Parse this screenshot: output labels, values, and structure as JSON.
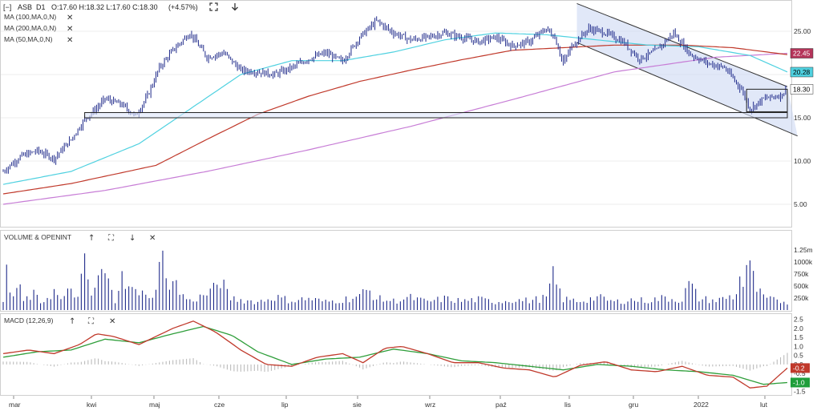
{
  "header": {
    "collapse_glyph": "[−]",
    "symbol": "ASB",
    "interval": "D1",
    "ohlc": "O:17.60  H:18.32  L:17.60  C:18.30",
    "change": "(+4.57%)",
    "expand_icon": "expand-icon",
    "down_icon": "arrow-down-icon"
  },
  "indicators": [
    {
      "label": "MA (100,MA,0,N)",
      "color": "#c0392b",
      "close_glyph": "✕"
    },
    {
      "label": "MA (200,MA,0,N)",
      "color": "#c77dd6",
      "close_glyph": "✕"
    },
    {
      "label": "MA (50,MA,0,N)",
      "color": "#4fd1e0",
      "close_glyph": "✕"
    }
  ],
  "volume_panel": {
    "label": "VOLUME & OPENINT",
    "glyphs": [
      "↑",
      "⛶",
      "↓",
      "✕"
    ]
  },
  "macd_panel": {
    "label": "MACD (12,26,9)",
    "glyphs": [
      "↑",
      "⛶",
      "✕"
    ]
  },
  "price_badges": [
    {
      "text": "22.45",
      "value": 22.45,
      "bg": "#b5345a",
      "fg": "#ffffff"
    },
    {
      "text": "20.28",
      "value": 20.28,
      "bg": "#4fd1e0",
      "fg": "#000000"
    },
    {
      "text": "18.30",
      "value": 18.3,
      "bg": "#ffffff",
      "fg": "#000000"
    }
  ],
  "macd_badges": [
    {
      "text": "-0.2",
      "value": -0.2,
      "bg": "#c0392b",
      "fg": "#ffffff"
    },
    {
      "text": "-1.0",
      "value": -1.0,
      "bg": "#1e9e3a",
      "fg": "#ffffff"
    }
  ],
  "colors": {
    "candle": "#1f2a8a",
    "ma50": "#4fd1e0",
    "ma100": "#c0392b",
    "ma200": "#c77dd6",
    "channel_fill": "#c9d6f2",
    "macd_line": "#c0392b",
    "signal_line": "#2e9e3a",
    "hist": "#bbbbbb",
    "volume": "#1f2a8a"
  },
  "chart_data": [
    {
      "type": "candlestick",
      "title": "ASB D1",
      "x_ticks": [
        "mar",
        "kwi",
        "maj",
        "cze",
        "lip",
        "sie",
        "wrz",
        "paź",
        "lis",
        "gru",
        "2022",
        "lut"
      ],
      "ylim": [
        2.5,
        27.5
      ],
      "y_ticks": [
        5,
        10,
        15,
        20,
        25
      ],
      "y_tick_labels": [
        "5.00",
        "10.00",
        "15.00",
        "20.00",
        "25.00"
      ],
      "last": {
        "open": 17.6,
        "high": 18.32,
        "low": 17.6,
        "close": 18.3,
        "change_pct": 4.57
      },
      "close_keypoints": [
        [
          0,
          8.8
        ],
        [
          10,
          10.5
        ],
        [
          20,
          11.2
        ],
        [
          30,
          10.3
        ],
        [
          40,
          12.5
        ],
        [
          48,
          14.8
        ],
        [
          55,
          16.1
        ],
        [
          60,
          17.2
        ],
        [
          70,
          16.5
        ],
        [
          78,
          15.2
        ],
        [
          85,
          17.5
        ],
        [
          92,
          20.8
        ],
        [
          100,
          22.8
        ],
        [
          110,
          24.8
        ],
        [
          120,
          22.0
        ],
        [
          130,
          22.5
        ],
        [
          140,
          20.5
        ],
        [
          150,
          20.3
        ],
        [
          160,
          20.0
        ],
        [
          170,
          20.8
        ],
        [
          180,
          21.8
        ],
        [
          190,
          22.5
        ],
        [
          200,
          21.5
        ],
        [
          210,
          24.3
        ],
        [
          220,
          26.2
        ],
        [
          230,
          24.8
        ],
        [
          240,
          24.0
        ],
        [
          250,
          24.3
        ],
        [
          260,
          24.8
        ],
        [
          270,
          24.3
        ],
        [
          280,
          23.8
        ],
        [
          290,
          24.3
        ],
        [
          300,
          23.3
        ],
        [
          310,
          23.8
        ],
        [
          320,
          25.3
        ],
        [
          325,
          24.3
        ],
        [
          330,
          21.3
        ],
        [
          335,
          23.3
        ],
        [
          345,
          25.3
        ],
        [
          355,
          24.8
        ],
        [
          365,
          23.8
        ],
        [
          375,
          21.8
        ],
        [
          385,
          22.8
        ],
        [
          395,
          24.8
        ],
        [
          405,
          22.3
        ],
        [
          415,
          21.3
        ],
        [
          425,
          20.8
        ],
        [
          435,
          18.3
        ],
        [
          440,
          16.0
        ],
        [
          448,
          17.2
        ],
        [
          458,
          17.6
        ],
        [
          462,
          18.3
        ]
      ],
      "horizontal_levels": [
        15.0,
        15.6
      ],
      "box": {
        "x": [
          438,
          462
        ],
        "y": [
          15.7,
          18.3
        ]
      },
      "channel": {
        "upper": [
          [
            338,
            28.2
          ],
          [
            462,
            18.6
          ]
        ],
        "lower": [
          [
            338,
            23.7
          ],
          [
            468,
            12.9
          ]
        ]
      },
      "ma50": [
        [
          0,
          7.3
        ],
        [
          40,
          8.8
        ],
        [
          80,
          12.0
        ],
        [
          110,
          16.0
        ],
        [
          140,
          20.0
        ],
        [
          170,
          21.6
        ],
        [
          200,
          21.6
        ],
        [
          230,
          22.6
        ],
        [
          260,
          24.0
        ],
        [
          290,
          24.8
        ],
        [
          320,
          24.6
        ],
        [
          350,
          24.0
        ],
        [
          380,
          23.4
        ],
        [
          410,
          23.2
        ],
        [
          440,
          22.2
        ],
        [
          462,
          20.3
        ]
      ],
      "ma100": [
        [
          0,
          6.2
        ],
        [
          40,
          7.4
        ],
        [
          90,
          9.5
        ],
        [
          120,
          12.5
        ],
        [
          150,
          15.4
        ],
        [
          180,
          17.5
        ],
        [
          210,
          19.2
        ],
        [
          240,
          20.5
        ],
        [
          270,
          21.7
        ],
        [
          300,
          22.8
        ],
        [
          320,
          23.0
        ],
        [
          360,
          23.4
        ],
        [
          400,
          23.4
        ],
        [
          430,
          23.1
        ],
        [
          462,
          22.3
        ]
      ],
      "ma200": [
        [
          0,
          5.0
        ],
        [
          60,
          6.6
        ],
        [
          120,
          8.8
        ],
        [
          180,
          11.3
        ],
        [
          240,
          14.0
        ],
        [
          300,
          17.1
        ],
        [
          360,
          20.3
        ],
        [
          420,
          22.0
        ],
        [
          462,
          22.45
        ]
      ]
    },
    {
      "type": "bar",
      "title": "VOLUME & OPENINT",
      "ylim": [
        0,
        1450
      ],
      "y_ticks": [
        250,
        500,
        750,
        1000,
        1250
      ],
      "y_tick_labels": [
        "250k",
        "500k",
        "750k",
        "1000k",
        "1.25m"
      ],
      "volume_keypoints": [
        [
          0,
          200
        ],
        [
          2,
          920
        ],
        [
          5,
          250
        ],
        [
          9,
          600
        ],
        [
          12,
          220
        ],
        [
          18,
          380
        ],
        [
          22,
          180
        ],
        [
          30,
          450
        ],
        [
          35,
          200
        ],
        [
          40,
          560
        ],
        [
          44,
          280
        ],
        [
          48,
          1100
        ],
        [
          52,
          350
        ],
        [
          56,
          720
        ],
        [
          59,
          1000
        ],
        [
          62,
          650
        ],
        [
          66,
          200
        ],
        [
          70,
          1250
        ],
        [
          73,
          380
        ],
        [
          76,
          620
        ],
        [
          80,
          300
        ],
        [
          84,
          500
        ],
        [
          88,
          250
        ],
        [
          93,
          1450
        ],
        [
          96,
          650
        ],
        [
          100,
          820
        ],
        [
          104,
          420
        ],
        [
          110,
          220
        ],
        [
          118,
          350
        ],
        [
          124,
          500
        ],
        [
          128,
          760
        ],
        [
          133,
          300
        ],
        [
          140,
          250
        ],
        [
          150,
          200
        ],
        [
          160,
          320
        ],
        [
          170,
          230
        ],
        [
          180,
          280
        ],
        [
          190,
          200
        ],
        [
          200,
          250
        ],
        [
          210,
          340
        ],
        [
          215,
          500
        ],
        [
          220,
          280
        ],
        [
          230,
          220
        ],
        [
          240,
          300
        ],
        [
          250,
          200
        ],
        [
          260,
          280
        ],
        [
          270,
          220
        ],
        [
          280,
          260
        ],
        [
          290,
          200
        ],
        [
          300,
          250
        ],
        [
          310,
          230
        ],
        [
          320,
          300
        ],
        [
          324,
          800
        ],
        [
          330,
          260
        ],
        [
          340,
          220
        ],
        [
          350,
          310
        ],
        [
          360,
          200
        ],
        [
          370,
          250
        ],
        [
          380,
          230
        ],
        [
          390,
          300
        ],
        [
          400,
          240
        ],
        [
          404,
          650
        ],
        [
          410,
          280
        ],
        [
          420,
          230
        ],
        [
          428,
          320
        ],
        [
          432,
          350
        ],
        [
          434,
          1000
        ],
        [
          436,
          600
        ],
        [
          438,
          1100
        ],
        [
          441,
          900
        ],
        [
          444,
          500
        ],
        [
          448,
          300
        ],
        [
          455,
          230
        ],
        [
          462,
          200
        ]
      ]
    },
    {
      "type": "line",
      "title": "MACD (12,26,9)",
      "ylim": [
        -1.6,
        2.7
      ],
      "y_ticks": [
        -1.5,
        -1.0,
        -0.5,
        0.0,
        0.5,
        1.0,
        1.5,
        2.0,
        2.5
      ],
      "y_tick_labels": [
        "-1.5",
        "-1.0",
        "-0.5",
        "0.0",
        "0.5",
        "1.0",
        "1.5",
        "2.0",
        "2.5"
      ],
      "macd": [
        [
          0,
          0.6
        ],
        [
          15,
          0.8
        ],
        [
          30,
          0.6
        ],
        [
          45,
          1.1
        ],
        [
          55,
          1.7
        ],
        [
          65,
          1.55
        ],
        [
          80,
          1.1
        ],
        [
          100,
          2.0
        ],
        [
          112,
          2.4
        ],
        [
          125,
          1.8
        ],
        [
          140,
          0.8
        ],
        [
          155,
          0.0
        ],
        [
          170,
          -0.1
        ],
        [
          185,
          0.4
        ],
        [
          200,
          0.6
        ],
        [
          212,
          0.1
        ],
        [
          225,
          0.9
        ],
        [
          235,
          1.0
        ],
        [
          250,
          0.6
        ],
        [
          265,
          0.1
        ],
        [
          280,
          0.1
        ],
        [
          295,
          -0.2
        ],
        [
          310,
          -0.3
        ],
        [
          325,
          -0.7
        ],
        [
          340,
          -0.05
        ],
        [
          355,
          0.15
        ],
        [
          370,
          -0.3
        ],
        [
          385,
          -0.4
        ],
        [
          400,
          -0.1
        ],
        [
          415,
          -0.6
        ],
        [
          430,
          -0.7
        ],
        [
          440,
          -1.3
        ],
        [
          450,
          -1.2
        ],
        [
          462,
          -0.2
        ]
      ],
      "signal": [
        [
          0,
          0.4
        ],
        [
          20,
          0.7
        ],
        [
          40,
          0.8
        ],
        [
          60,
          1.4
        ],
        [
          80,
          1.2
        ],
        [
          100,
          1.7
        ],
        [
          118,
          2.1
        ],
        [
          135,
          1.6
        ],
        [
          150,
          0.7
        ],
        [
          170,
          0.0
        ],
        [
          190,
          0.3
        ],
        [
          210,
          0.4
        ],
        [
          230,
          0.85
        ],
        [
          250,
          0.6
        ],
        [
          270,
          0.2
        ],
        [
          290,
          0.1
        ],
        [
          310,
          -0.1
        ],
        [
          330,
          -0.3
        ],
        [
          350,
          0.0
        ],
        [
          370,
          -0.1
        ],
        [
          390,
          -0.3
        ],
        [
          410,
          -0.4
        ],
        [
          430,
          -0.6
        ],
        [
          448,
          -1.1
        ],
        [
          462,
          -1.0
        ]
      ]
    }
  ]
}
